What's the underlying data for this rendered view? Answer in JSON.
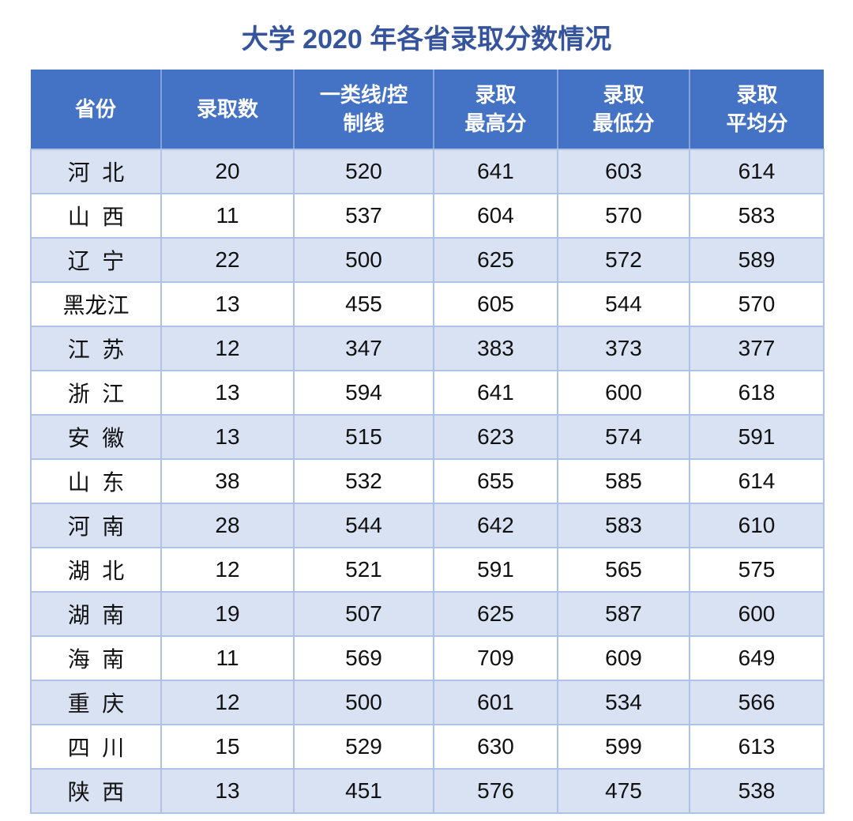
{
  "page": {
    "title": "大学 2020 年各省录取分数情况"
  },
  "colors": {
    "title_text": "#35549D",
    "header_bg": "#4472C4",
    "header_text": "#FFFFFF",
    "banded_row_bg": "#D9E2F3",
    "border": "#AEC2E5",
    "body_text": "#111111"
  },
  "table": {
    "columns": [
      {
        "id": "province",
        "lines": [
          "省份"
        ]
      },
      {
        "id": "admit-count",
        "lines": [
          "录取数"
        ]
      },
      {
        "id": "control-line",
        "lines": [
          "一类线/控",
          "制线"
        ]
      },
      {
        "id": "max-score",
        "lines": [
          "录取",
          "最高分"
        ]
      },
      {
        "id": "min-score",
        "lines": [
          "录取",
          "最低分"
        ]
      },
      {
        "id": "avg-score",
        "lines": [
          "录取",
          "平均分"
        ]
      }
    ],
    "rows": [
      [
        "河  北",
        "20",
        "520",
        "641",
        "603",
        "614"
      ],
      [
        "山  西",
        "11",
        "537",
        "604",
        "570",
        "583"
      ],
      [
        "辽  宁",
        "22",
        "500",
        "625",
        "572",
        "589"
      ],
      [
        "黑龙江",
        "13",
        "455",
        "605",
        "544",
        "570"
      ],
      [
        "江  苏",
        "12",
        "347",
        "383",
        "373",
        "377"
      ],
      [
        "浙  江",
        "13",
        "594",
        "641",
        "600",
        "618"
      ],
      [
        "安  徽",
        "13",
        "515",
        "623",
        "574",
        "591"
      ],
      [
        "山  东",
        "38",
        "532",
        "655",
        "585",
        "614"
      ],
      [
        "河  南",
        "28",
        "544",
        "642",
        "583",
        "610"
      ],
      [
        "湖  北",
        "12",
        "521",
        "591",
        "565",
        "575"
      ],
      [
        "湖  南",
        "19",
        "507",
        "625",
        "587",
        "600"
      ],
      [
        "海  南",
        "11",
        "569",
        "709",
        "609",
        "649"
      ],
      [
        "重  庆",
        "12",
        "500",
        "601",
        "534",
        "566"
      ],
      [
        "四  川",
        "15",
        "529",
        "630",
        "599",
        "613"
      ],
      [
        "陕  西",
        "13",
        "451",
        "576",
        "475",
        "538"
      ]
    ]
  },
  "chart_data": {
    "type": "table",
    "title": "大学 2020 年各省录取分数情况",
    "columns": [
      "省份",
      "录取数",
      "一类线/控制线",
      "录取最高分",
      "录取最低分",
      "录取平均分"
    ],
    "rows": [
      [
        "河北",
        20,
        520,
        641,
        603,
        614
      ],
      [
        "山西",
        11,
        537,
        604,
        570,
        583
      ],
      [
        "辽宁",
        22,
        500,
        625,
        572,
        589
      ],
      [
        "黑龙江",
        13,
        455,
        605,
        544,
        570
      ],
      [
        "江苏",
        12,
        347,
        383,
        373,
        377
      ],
      [
        "浙江",
        13,
        594,
        641,
        600,
        618
      ],
      [
        "安徽",
        13,
        515,
        623,
        574,
        591
      ],
      [
        "山东",
        38,
        532,
        655,
        585,
        614
      ],
      [
        "河南",
        28,
        544,
        642,
        583,
        610
      ],
      [
        "湖北",
        12,
        521,
        591,
        565,
        575
      ],
      [
        "湖南",
        19,
        507,
        625,
        587,
        600
      ],
      [
        "海南",
        11,
        569,
        709,
        609,
        649
      ],
      [
        "重庆",
        12,
        500,
        601,
        534,
        566
      ],
      [
        "四川",
        15,
        529,
        630,
        599,
        613
      ],
      [
        "陕西",
        13,
        451,
        576,
        475,
        538
      ]
    ],
    "layout_hints": {
      "banded_rows": "odd rows shaded",
      "header_style": "solid blue with white bold text",
      "grid": "on"
    }
  }
}
